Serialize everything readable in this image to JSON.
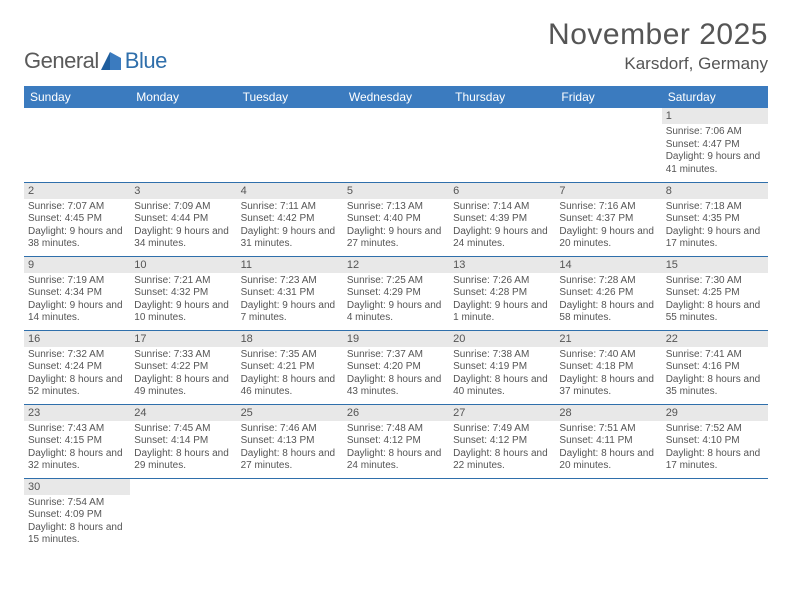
{
  "logo": {
    "text_a": "General",
    "text_b": "Blue"
  },
  "title": "November 2025",
  "location": "Karsdorf, Germany",
  "colors": {
    "header_bg": "#3b7bbf",
    "header_text": "#ffffff",
    "rule": "#2f6fab",
    "daynum_bg": "#e8e8e8",
    "body_text": "#555555"
  },
  "weekdays": [
    "Sunday",
    "Monday",
    "Tuesday",
    "Wednesday",
    "Thursday",
    "Friday",
    "Saturday"
  ],
  "weeks": [
    [
      null,
      null,
      null,
      null,
      null,
      null,
      {
        "n": "1",
        "sr": "Sunrise: 7:06 AM",
        "ss": "Sunset: 4:47 PM",
        "dl": "Daylight: 9 hours and 41 minutes."
      }
    ],
    [
      {
        "n": "2",
        "sr": "Sunrise: 7:07 AM",
        "ss": "Sunset: 4:45 PM",
        "dl": "Daylight: 9 hours and 38 minutes."
      },
      {
        "n": "3",
        "sr": "Sunrise: 7:09 AM",
        "ss": "Sunset: 4:44 PM",
        "dl": "Daylight: 9 hours and 34 minutes."
      },
      {
        "n": "4",
        "sr": "Sunrise: 7:11 AM",
        "ss": "Sunset: 4:42 PM",
        "dl": "Daylight: 9 hours and 31 minutes."
      },
      {
        "n": "5",
        "sr": "Sunrise: 7:13 AM",
        "ss": "Sunset: 4:40 PM",
        "dl": "Daylight: 9 hours and 27 minutes."
      },
      {
        "n": "6",
        "sr": "Sunrise: 7:14 AM",
        "ss": "Sunset: 4:39 PM",
        "dl": "Daylight: 9 hours and 24 minutes."
      },
      {
        "n": "7",
        "sr": "Sunrise: 7:16 AM",
        "ss": "Sunset: 4:37 PM",
        "dl": "Daylight: 9 hours and 20 minutes."
      },
      {
        "n": "8",
        "sr": "Sunrise: 7:18 AM",
        "ss": "Sunset: 4:35 PM",
        "dl": "Daylight: 9 hours and 17 minutes."
      }
    ],
    [
      {
        "n": "9",
        "sr": "Sunrise: 7:19 AM",
        "ss": "Sunset: 4:34 PM",
        "dl": "Daylight: 9 hours and 14 minutes."
      },
      {
        "n": "10",
        "sr": "Sunrise: 7:21 AM",
        "ss": "Sunset: 4:32 PM",
        "dl": "Daylight: 9 hours and 10 minutes."
      },
      {
        "n": "11",
        "sr": "Sunrise: 7:23 AM",
        "ss": "Sunset: 4:31 PM",
        "dl": "Daylight: 9 hours and 7 minutes."
      },
      {
        "n": "12",
        "sr": "Sunrise: 7:25 AM",
        "ss": "Sunset: 4:29 PM",
        "dl": "Daylight: 9 hours and 4 minutes."
      },
      {
        "n": "13",
        "sr": "Sunrise: 7:26 AM",
        "ss": "Sunset: 4:28 PM",
        "dl": "Daylight: 9 hours and 1 minute."
      },
      {
        "n": "14",
        "sr": "Sunrise: 7:28 AM",
        "ss": "Sunset: 4:26 PM",
        "dl": "Daylight: 8 hours and 58 minutes."
      },
      {
        "n": "15",
        "sr": "Sunrise: 7:30 AM",
        "ss": "Sunset: 4:25 PM",
        "dl": "Daylight: 8 hours and 55 minutes."
      }
    ],
    [
      {
        "n": "16",
        "sr": "Sunrise: 7:32 AM",
        "ss": "Sunset: 4:24 PM",
        "dl": "Daylight: 8 hours and 52 minutes."
      },
      {
        "n": "17",
        "sr": "Sunrise: 7:33 AM",
        "ss": "Sunset: 4:22 PM",
        "dl": "Daylight: 8 hours and 49 minutes."
      },
      {
        "n": "18",
        "sr": "Sunrise: 7:35 AM",
        "ss": "Sunset: 4:21 PM",
        "dl": "Daylight: 8 hours and 46 minutes."
      },
      {
        "n": "19",
        "sr": "Sunrise: 7:37 AM",
        "ss": "Sunset: 4:20 PM",
        "dl": "Daylight: 8 hours and 43 minutes."
      },
      {
        "n": "20",
        "sr": "Sunrise: 7:38 AM",
        "ss": "Sunset: 4:19 PM",
        "dl": "Daylight: 8 hours and 40 minutes."
      },
      {
        "n": "21",
        "sr": "Sunrise: 7:40 AM",
        "ss": "Sunset: 4:18 PM",
        "dl": "Daylight: 8 hours and 37 minutes."
      },
      {
        "n": "22",
        "sr": "Sunrise: 7:41 AM",
        "ss": "Sunset: 4:16 PM",
        "dl": "Daylight: 8 hours and 35 minutes."
      }
    ],
    [
      {
        "n": "23",
        "sr": "Sunrise: 7:43 AM",
        "ss": "Sunset: 4:15 PM",
        "dl": "Daylight: 8 hours and 32 minutes."
      },
      {
        "n": "24",
        "sr": "Sunrise: 7:45 AM",
        "ss": "Sunset: 4:14 PM",
        "dl": "Daylight: 8 hours and 29 minutes."
      },
      {
        "n": "25",
        "sr": "Sunrise: 7:46 AM",
        "ss": "Sunset: 4:13 PM",
        "dl": "Daylight: 8 hours and 27 minutes."
      },
      {
        "n": "26",
        "sr": "Sunrise: 7:48 AM",
        "ss": "Sunset: 4:12 PM",
        "dl": "Daylight: 8 hours and 24 minutes."
      },
      {
        "n": "27",
        "sr": "Sunrise: 7:49 AM",
        "ss": "Sunset: 4:12 PM",
        "dl": "Daylight: 8 hours and 22 minutes."
      },
      {
        "n": "28",
        "sr": "Sunrise: 7:51 AM",
        "ss": "Sunset: 4:11 PM",
        "dl": "Daylight: 8 hours and 20 minutes."
      },
      {
        "n": "29",
        "sr": "Sunrise: 7:52 AM",
        "ss": "Sunset: 4:10 PM",
        "dl": "Daylight: 8 hours and 17 minutes."
      }
    ],
    [
      {
        "n": "30",
        "sr": "Sunrise: 7:54 AM",
        "ss": "Sunset: 4:09 PM",
        "dl": "Daylight: 8 hours and 15 minutes."
      },
      null,
      null,
      null,
      null,
      null,
      null
    ]
  ]
}
